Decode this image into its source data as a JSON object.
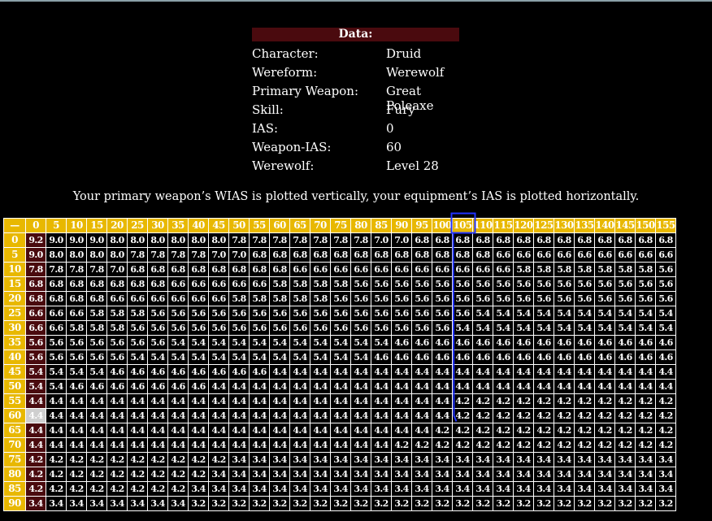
{
  "info": {
    "header": "Data:",
    "rows": [
      {
        "label": "Character:",
        "value": "Druid"
      },
      {
        "label": "Wereform:",
        "value": "Werewolf"
      },
      {
        "label": "Primary Weapon:",
        "value": "Great Poleaxe"
      },
      {
        "label": "Skill:",
        "value": "Fury"
      },
      {
        "label": "IAS:",
        "value": "0"
      },
      {
        "label": "Weapon-IAS:",
        "value": "60"
      },
      {
        "label": "Werewolf:",
        "value": "Level 28"
      }
    ]
  },
  "caption": "Your primary weapon’s WIAS is plotted vertically, your equipment’s IAS is plotted horizontally.",
  "table": {
    "corner": "—",
    "col_headers": [
      "0",
      "5",
      "10",
      "15",
      "20",
      "25",
      "30",
      "35",
      "40",
      "45",
      "50",
      "55",
      "60",
      "65",
      "70",
      "75",
      "80",
      "85",
      "90",
      "95",
      "100",
      "105",
      "110",
      "115",
      "120",
      "125",
      "130",
      "135",
      "140",
      "145",
      "150",
      "155"
    ],
    "row_headers": [
      "0",
      "5",
      "10",
      "15",
      "20",
      "25",
      "30",
      "35",
      "40",
      "45",
      "50",
      "55",
      "60",
      "65",
      "70",
      "75",
      "80",
      "85",
      "90"
    ],
    "rows": [
      [
        "9.2",
        "9.0",
        "9.0",
        "9.0",
        "8.0",
        "8.0",
        "8.0",
        "8.0",
        "8.0",
        "8.0",
        "7.8",
        "7.8",
        "7.8",
        "7.8",
        "7.8",
        "7.8",
        "7.8",
        "7.0",
        "7.0",
        "6.8",
        "6.8",
        "6.8",
        "6.8",
        "6.8",
        "6.8",
        "6.8",
        "6.8",
        "6.8",
        "6.8",
        "6.8",
        "6.8",
        "6.8"
      ],
      [
        "9.0",
        "8.0",
        "8.0",
        "8.0",
        "8.0",
        "7.8",
        "7.8",
        "7.8",
        "7.8",
        "7.0",
        "7.0",
        "6.8",
        "6.8",
        "6.8",
        "6.8",
        "6.8",
        "6.8",
        "6.8",
        "6.8",
        "6.8",
        "6.8",
        "6.8",
        "6.8",
        "6.6",
        "6.6",
        "6.6",
        "6.6",
        "6.6",
        "6.6",
        "6.6",
        "6.6",
        "6.6"
      ],
      [
        "7.8",
        "7.8",
        "7.8",
        "7.8",
        "7.0",
        "6.8",
        "6.8",
        "6.8",
        "6.8",
        "6.8",
        "6.8",
        "6.8",
        "6.8",
        "6.6",
        "6.6",
        "6.6",
        "6.6",
        "6.6",
        "6.6",
        "6.6",
        "6.6",
        "6.6",
        "6.6",
        "6.6",
        "5.8",
        "5.8",
        "5.8",
        "5.8",
        "5.8",
        "5.8",
        "5.8",
        "5.6"
      ],
      [
        "6.8",
        "6.8",
        "6.8",
        "6.8",
        "6.8",
        "6.8",
        "6.8",
        "6.6",
        "6.6",
        "6.6",
        "6.6",
        "6.6",
        "5.8",
        "5.8",
        "5.8",
        "5.8",
        "5.6",
        "5.6",
        "5.6",
        "5.6",
        "5.6",
        "5.6",
        "5.6",
        "5.6",
        "5.6",
        "5.6",
        "5.6",
        "5.6",
        "5.6",
        "5.6",
        "5.6",
        "5.6"
      ],
      [
        "6.8",
        "6.8",
        "6.8",
        "6.8",
        "6.6",
        "6.6",
        "6.6",
        "6.6",
        "6.6",
        "6.6",
        "5.8",
        "5.8",
        "5.8",
        "5.8",
        "5.8",
        "5.6",
        "5.6",
        "5.6",
        "5.6",
        "5.6",
        "5.6",
        "5.6",
        "5.6",
        "5.6",
        "5.6",
        "5.6",
        "5.6",
        "5.6",
        "5.6",
        "5.6",
        "5.6",
        "5.6"
      ],
      [
        "6.6",
        "6.6",
        "6.6",
        "5.8",
        "5.8",
        "5.8",
        "5.6",
        "5.6",
        "5.6",
        "5.6",
        "5.6",
        "5.6",
        "5.6",
        "5.6",
        "5.6",
        "5.6",
        "5.6",
        "5.6",
        "5.6",
        "5.6",
        "5.6",
        "5.6",
        "5.4",
        "5.4",
        "5.4",
        "5.4",
        "5.4",
        "5.4",
        "5.4",
        "5.4",
        "5.4",
        "5.4"
      ],
      [
        "6.6",
        "6.6",
        "5.8",
        "5.8",
        "5.8",
        "5.6",
        "5.6",
        "5.6",
        "5.6",
        "5.6",
        "5.6",
        "5.6",
        "5.6",
        "5.6",
        "5.6",
        "5.6",
        "5.6",
        "5.6",
        "5.6",
        "5.6",
        "5.6",
        "5.4",
        "5.4",
        "5.4",
        "5.4",
        "5.4",
        "5.4",
        "5.4",
        "5.4",
        "5.4",
        "5.4",
        "5.4"
      ],
      [
        "5.6",
        "5.6",
        "5.6",
        "5.6",
        "5.6",
        "5.6",
        "5.6",
        "5.4",
        "5.4",
        "5.4",
        "5.4",
        "5.4",
        "5.4",
        "5.4",
        "5.4",
        "5.4",
        "5.4",
        "5.4",
        "4.6",
        "4.6",
        "4.6",
        "4.6",
        "4.6",
        "4.6",
        "4.6",
        "4.6",
        "4.6",
        "4.6",
        "4.6",
        "4.6",
        "4.6",
        "4.6"
      ],
      [
        "5.6",
        "5.6",
        "5.6",
        "5.6",
        "5.6",
        "5.4",
        "5.4",
        "5.4",
        "5.4",
        "5.4",
        "5.4",
        "5.4",
        "5.4",
        "5.4",
        "5.4",
        "5.4",
        "5.4",
        "4.6",
        "4.6",
        "4.6",
        "4.6",
        "4.6",
        "4.6",
        "4.6",
        "4.6",
        "4.6",
        "4.6",
        "4.6",
        "4.6",
        "4.6",
        "4.6",
        "4.6"
      ],
      [
        "5.4",
        "5.4",
        "5.4",
        "5.4",
        "4.6",
        "4.6",
        "4.6",
        "4.6",
        "4.6",
        "4.6",
        "4.6",
        "4.6",
        "4.4",
        "4.4",
        "4.4",
        "4.4",
        "4.4",
        "4.4",
        "4.4",
        "4.4",
        "4.4",
        "4.4",
        "4.4",
        "4.4",
        "4.4",
        "4.4",
        "4.4",
        "4.4",
        "4.4",
        "4.4",
        "4.4",
        "4.4"
      ],
      [
        "5.4",
        "5.4",
        "4.6",
        "4.6",
        "4.6",
        "4.6",
        "4.6",
        "4.6",
        "4.6",
        "4.4",
        "4.4",
        "4.4",
        "4.4",
        "4.4",
        "4.4",
        "4.4",
        "4.4",
        "4.4",
        "4.4",
        "4.4",
        "4.4",
        "4.4",
        "4.4",
        "4.4",
        "4.4",
        "4.4",
        "4.4",
        "4.4",
        "4.4",
        "4.4",
        "4.4",
        "4.4"
      ],
      [
        "4.4",
        "4.4",
        "4.4",
        "4.4",
        "4.4",
        "4.4",
        "4.4",
        "4.4",
        "4.4",
        "4.4",
        "4.4",
        "4.4",
        "4.4",
        "4.4",
        "4.4",
        "4.4",
        "4.4",
        "4.4",
        "4.4",
        "4.4",
        "4.4",
        "4.2",
        "4.2",
        "4.2",
        "4.2",
        "4.2",
        "4.2",
        "4.2",
        "4.2",
        "4.2",
        "4.2",
        "4.2"
      ],
      [
        "4.4",
        "4.4",
        "4.4",
        "4.4",
        "4.4",
        "4.4",
        "4.4",
        "4.4",
        "4.4",
        "4.4",
        "4.4",
        "4.4",
        "4.4",
        "4.4",
        "4.4",
        "4.4",
        "4.4",
        "4.4",
        "4.4",
        "4.4",
        "4.4",
        "4.2",
        "4.2",
        "4.2",
        "4.2",
        "4.2",
        "4.2",
        "4.2",
        "4.2",
        "4.2",
        "4.2",
        "4.2"
      ],
      [
        "4.4",
        "4.4",
        "4.4",
        "4.4",
        "4.4",
        "4.4",
        "4.4",
        "4.4",
        "4.4",
        "4.4",
        "4.4",
        "4.4",
        "4.4",
        "4.4",
        "4.4",
        "4.4",
        "4.4",
        "4.4",
        "4.4",
        "4.4",
        "4.2",
        "4.2",
        "4.2",
        "4.2",
        "4.2",
        "4.2",
        "4.2",
        "4.2",
        "4.2",
        "4.2",
        "4.2",
        "4.2"
      ],
      [
        "4.4",
        "4.4",
        "4.4",
        "4.4",
        "4.4",
        "4.4",
        "4.4",
        "4.4",
        "4.4",
        "4.4",
        "4.4",
        "4.4",
        "4.4",
        "4.4",
        "4.4",
        "4.4",
        "4.4",
        "4.4",
        "4.2",
        "4.2",
        "4.2",
        "4.2",
        "4.2",
        "4.2",
        "4.2",
        "4.2",
        "4.2",
        "4.2",
        "4.2",
        "4.2",
        "4.2",
        "4.2"
      ],
      [
        "4.2",
        "4.2",
        "4.2",
        "4.2",
        "4.2",
        "4.2",
        "4.2",
        "4.2",
        "4.2",
        "4.2",
        "3.4",
        "3.4",
        "3.4",
        "3.4",
        "3.4",
        "3.4",
        "3.4",
        "3.4",
        "3.4",
        "3.4",
        "3.4",
        "3.4",
        "3.4",
        "3.4",
        "3.4",
        "3.4",
        "3.4",
        "3.4",
        "3.4",
        "3.4",
        "3.4",
        "3.4"
      ],
      [
        "4.2",
        "4.2",
        "4.2",
        "4.2",
        "4.2",
        "4.2",
        "4.2",
        "4.2",
        "4.2",
        "3.4",
        "3.4",
        "3.4",
        "3.4",
        "3.4",
        "3.4",
        "3.4",
        "3.4",
        "3.4",
        "3.4",
        "3.4",
        "3.4",
        "3.4",
        "3.4",
        "3.4",
        "3.4",
        "3.4",
        "3.4",
        "3.4",
        "3.4",
        "3.4",
        "3.4",
        "3.4"
      ],
      [
        "4.2",
        "4.2",
        "4.2",
        "4.2",
        "4.2",
        "4.2",
        "4.2",
        "4.2",
        "3.4",
        "3.4",
        "3.4",
        "3.4",
        "3.4",
        "3.4",
        "3.4",
        "3.4",
        "3.4",
        "3.4",
        "3.4",
        "3.4",
        "3.4",
        "3.4",
        "3.4",
        "3.4",
        "3.4",
        "3.4",
        "3.4",
        "3.4",
        "3.4",
        "3.4",
        "3.4",
        "3.4"
      ],
      [
        "3.4",
        "3.4",
        "3.4",
        "3.4",
        "3.4",
        "3.4",
        "3.4",
        "3.4",
        "3.2",
        "3.2",
        "3.2",
        "3.2",
        "3.2",
        "3.2",
        "3.2",
        "3.2",
        "3.2",
        "3.2",
        "3.2",
        "3.2",
        "3.2",
        "3.2",
        "3.2",
        "3.2",
        "3.2",
        "3.2",
        "3.2",
        "3.2",
        "3.2",
        "3.2",
        "3.2",
        "3.2"
      ]
    ],
    "current_row": 12,
    "current_col": 0,
    "marked_col": 21
  },
  "colors": {
    "header_bg": "#e8b800",
    "data_header_bg": "#4a0a0e",
    "marker": "#2233ff",
    "current_cell": "#cfcfcf"
  }
}
